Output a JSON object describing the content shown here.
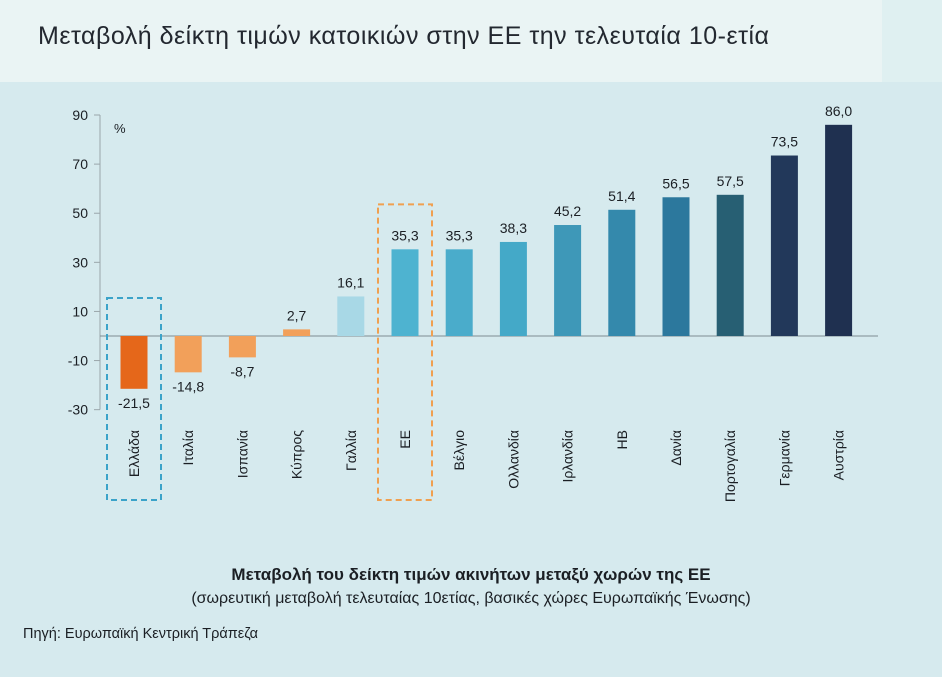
{
  "header": {
    "title": "Μεταβολή δείκτη τιμών κατοικιών στην ΕΕ την τελευταία 10-ετία"
  },
  "chart_data": {
    "type": "bar",
    "title": "Μεταβολή του δείκτη τιμών ακινήτων μεταξύ χωρών της ΕΕ",
    "subtitle": "(σωρευτική μεταβολή τελευταίας 10ετίας, βασικές χώρες Ευρωπαϊκής Ένωσης)",
    "unit": "%",
    "ylim": [
      -30,
      90
    ],
    "yticks": [
      90,
      70,
      50,
      30,
      10,
      -10,
      -30
    ],
    "categories": [
      "Ελλάδα",
      "Ιταλία",
      "Ισπανία",
      "Κύπρος",
      "Γαλλία",
      "ΕΕ",
      "Βέλγιο",
      "Ολλανδία",
      "Ιρλανδία",
      "ΗΒ",
      "Δανία",
      "Πορτογαλία",
      "Γερμανία",
      "Αυστρία"
    ],
    "values": [
      -21.5,
      -14.8,
      -8.7,
      2.7,
      16.1,
      35.3,
      35.3,
      38.3,
      45.2,
      51.4,
      56.5,
      57.5,
      73.5,
      86.0
    ],
    "value_labels": [
      "-21,5",
      "-14,8",
      "-8,7",
      "2,7",
      "16,1",
      "35,3",
      "35,3",
      "38,3",
      "45,2",
      "51,4",
      "56,5",
      "57,5",
      "73,5",
      "86,0"
    ],
    "colors": [
      "#e5671a",
      "#f2a05a",
      "#f2a05a",
      "#f2a05a",
      "#a8d8e6",
      "#4eb3d0",
      "#4aaccb",
      "#44a9c8",
      "#3e98b8",
      "#3489ac",
      "#2c789d",
      "#275f73",
      "#22385a",
      "#1f3050"
    ],
    "highlighted": [
      "Ελλάδα",
      "ΕΕ"
    ],
    "highlight_colors": {
      "Ελλάδα": "#3ba3c9",
      "ΕΕ": "#f0a050"
    }
  },
  "source": "Πηγή: Ευρωπαϊκή Κεντρική Τράπεζα"
}
